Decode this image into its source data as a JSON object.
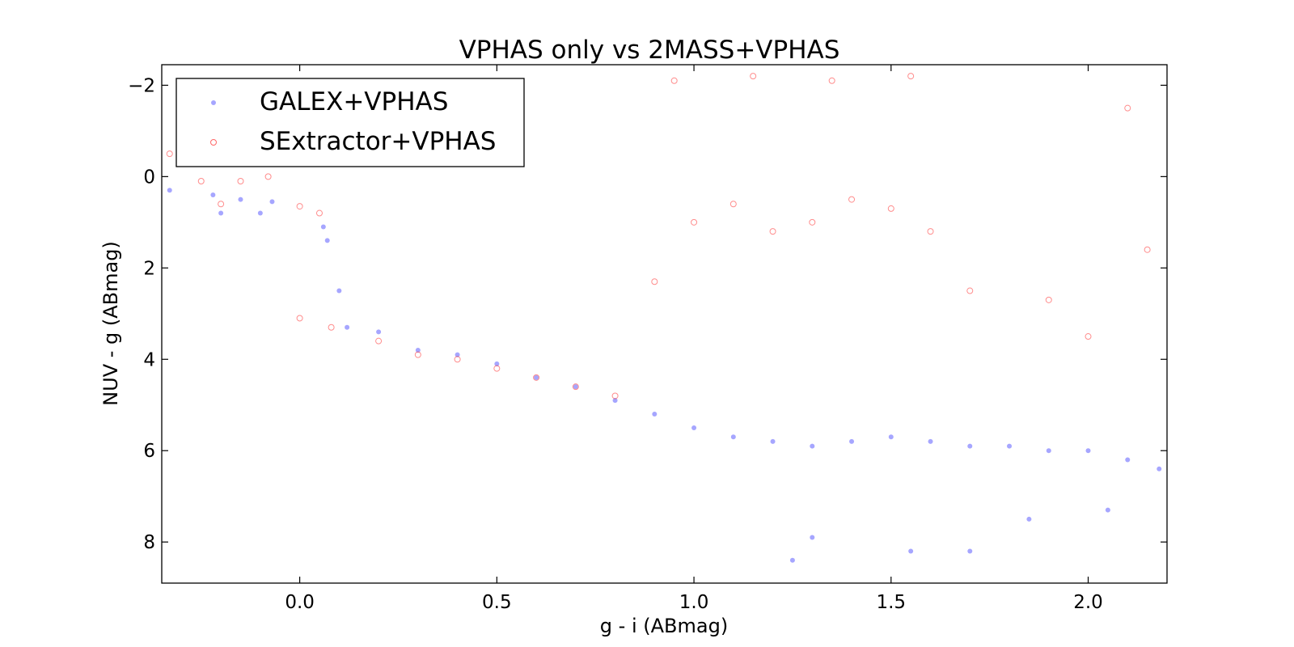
{
  "chart_data": {
    "type": "scatter",
    "title": "VPHAS only vs 2MASS+VPHAS",
    "xlabel": "g - i (ABmag)",
    "ylabel": "NUV - g (ABmag)",
    "xlim": [
      -0.35,
      2.2
    ],
    "ylim": [
      8.9,
      -2.45
    ],
    "y_inverted": true,
    "x_ticks": [
      0.0,
      0.5,
      1.0,
      1.5,
      2.0
    ],
    "x_tick_labels": [
      "0.0",
      "0.5",
      "1.0",
      "1.5",
      "2.0"
    ],
    "y_ticks": [
      -2,
      0,
      2,
      4,
      6,
      8
    ],
    "y_tick_labels": [
      "−2",
      "0",
      "2",
      "4",
      "6",
      "8"
    ],
    "grid": false,
    "legend_position": "top-left",
    "series": [
      {
        "name": "GALEX+VPHAS",
        "marker": "filled-circle",
        "color": "#0000ff",
        "alpha": 0.35,
        "points": [
          [
            -0.33,
            0.3
          ],
          [
            -0.3,
            -0.5
          ],
          [
            -0.22,
            0.4
          ],
          [
            -0.2,
            0.8
          ],
          [
            -0.15,
            0.5
          ],
          [
            -0.1,
            0.8
          ],
          [
            -0.07,
            0.55
          ],
          [
            0.06,
            1.1
          ],
          [
            0.07,
            1.4
          ],
          [
            0.1,
            2.5
          ],
          [
            0.12,
            3.3
          ],
          [
            0.2,
            3.4
          ],
          [
            0.3,
            3.8
          ],
          [
            0.4,
            3.9
          ],
          [
            0.5,
            4.1
          ],
          [
            0.6,
            4.4
          ],
          [
            0.7,
            4.6
          ],
          [
            0.8,
            4.9
          ],
          [
            0.9,
            5.2
          ],
          [
            1.0,
            5.5
          ],
          [
            1.1,
            5.7
          ],
          [
            1.2,
            5.8
          ],
          [
            1.3,
            5.9
          ],
          [
            1.4,
            5.8
          ],
          [
            1.5,
            5.7
          ],
          [
            1.6,
            5.8
          ],
          [
            1.7,
            5.9
          ],
          [
            1.8,
            5.9
          ],
          [
            1.9,
            6.0
          ],
          [
            2.0,
            6.0
          ],
          [
            2.1,
            6.2
          ],
          [
            2.18,
            6.4
          ],
          [
            1.25,
            8.4
          ],
          [
            1.55,
            8.2
          ],
          [
            1.3,
            7.9
          ],
          [
            1.7,
            8.2
          ],
          [
            1.85,
            7.5
          ],
          [
            2.05,
            7.3
          ]
        ]
      },
      {
        "name": "SExtractor+VPHAS",
        "marker": "open-circle",
        "color": "#ff0000",
        "alpha": 0.45,
        "points": [
          [
            -0.33,
            -0.5
          ],
          [
            -0.25,
            0.1
          ],
          [
            -0.2,
            0.6
          ],
          [
            -0.15,
            0.1
          ],
          [
            -0.08,
            0.0
          ],
          [
            0.0,
            0.65
          ],
          [
            0.05,
            0.8
          ],
          [
            0.0,
            3.1
          ],
          [
            0.08,
            3.3
          ],
          [
            0.2,
            3.6
          ],
          [
            0.3,
            3.9
          ],
          [
            0.4,
            4.0
          ],
          [
            0.5,
            4.2
          ],
          [
            0.6,
            4.4
          ],
          [
            0.7,
            4.6
          ],
          [
            0.8,
            4.8
          ],
          [
            0.9,
            2.3
          ],
          [
            1.0,
            1.0
          ],
          [
            1.1,
            0.6
          ],
          [
            1.2,
            1.2
          ],
          [
            1.3,
            1.0
          ],
          [
            1.4,
            0.5
          ],
          [
            1.5,
            0.7
          ],
          [
            1.6,
            1.2
          ],
          [
            1.7,
            2.5
          ],
          [
            1.9,
            2.7
          ],
          [
            2.0,
            3.5
          ],
          [
            2.15,
            1.6
          ],
          [
            2.1,
            -1.5
          ],
          [
            0.95,
            -2.1
          ],
          [
            1.15,
            -2.2
          ],
          [
            1.35,
            -2.1
          ],
          [
            1.55,
            -2.2
          ]
        ]
      }
    ]
  }
}
